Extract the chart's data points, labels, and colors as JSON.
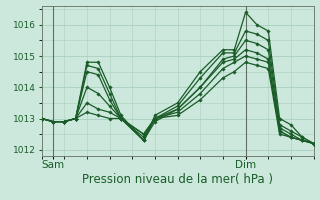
{
  "xlabel": "Pression niveau de la mer( hPa )",
  "bg_color": "#cce8dc",
  "grid_color": "#aacfbe",
  "line_color": "#1a5c28",
  "ylim": [
    1011.8,
    1016.6
  ],
  "xlim": [
    0,
    48
  ],
  "sam_x": 2,
  "dim_x": 36,
  "series": [
    {
      "x": [
        0,
        2,
        4,
        6,
        8,
        10,
        12,
        14,
        18,
        20,
        24,
        28,
        32,
        34,
        36,
        38,
        40,
        42,
        44,
        46,
        48
      ],
      "y": [
        1013.0,
        1012.9,
        1012.9,
        1013.0,
        1014.8,
        1014.8,
        1014.0,
        1013.1,
        1012.3,
        1013.1,
        1013.5,
        1014.5,
        1015.2,
        1015.2,
        1016.4,
        1016.0,
        1015.8,
        1013.0,
        1012.8,
        1012.4,
        1012.2
      ]
    },
    {
      "x": [
        0,
        2,
        4,
        6,
        8,
        10,
        12,
        14,
        18,
        20,
        24,
        28,
        32,
        34,
        36,
        38,
        40,
        42,
        44,
        46,
        48
      ],
      "y": [
        1013.0,
        1012.9,
        1012.9,
        1013.0,
        1014.7,
        1014.6,
        1013.8,
        1013.0,
        1012.3,
        1013.0,
        1013.4,
        1014.3,
        1015.1,
        1015.1,
        1015.8,
        1015.7,
        1015.5,
        1012.8,
        1012.6,
        1012.4,
        1012.2
      ]
    },
    {
      "x": [
        0,
        2,
        4,
        6,
        8,
        10,
        12,
        14,
        18,
        20,
        24,
        28,
        32,
        34,
        36,
        38,
        40,
        42,
        44,
        46,
        48
      ],
      "y": [
        1013.0,
        1012.9,
        1012.9,
        1013.0,
        1014.5,
        1014.4,
        1013.6,
        1013.0,
        1012.3,
        1012.9,
        1013.3,
        1014.0,
        1014.9,
        1015.0,
        1015.5,
        1015.4,
        1015.2,
        1012.7,
        1012.5,
        1012.3,
        1012.2
      ]
    },
    {
      "x": [
        0,
        2,
        4,
        6,
        8,
        10,
        12,
        14,
        18,
        20,
        24,
        28,
        32,
        34,
        36,
        38,
        40,
        42,
        44,
        46,
        48
      ],
      "y": [
        1013.0,
        1012.9,
        1012.9,
        1013.0,
        1014.0,
        1013.8,
        1013.4,
        1013.0,
        1012.4,
        1013.0,
        1013.3,
        1014.0,
        1014.8,
        1014.9,
        1015.2,
        1015.1,
        1014.9,
        1012.6,
        1012.4,
        1012.3,
        1012.2
      ]
    },
    {
      "x": [
        0,
        2,
        4,
        6,
        8,
        10,
        12,
        14,
        18,
        20,
        24,
        28,
        32,
        34,
        36,
        38,
        40,
        42,
        44,
        46,
        48
      ],
      "y": [
        1013.0,
        1012.9,
        1012.9,
        1013.0,
        1013.5,
        1013.3,
        1013.2,
        1013.0,
        1012.5,
        1013.0,
        1013.2,
        1013.8,
        1014.6,
        1014.8,
        1015.0,
        1014.9,
        1014.8,
        1012.6,
        1012.4,
        1012.3,
        1012.2
      ]
    },
    {
      "x": [
        0,
        2,
        4,
        6,
        8,
        10,
        12,
        14,
        18,
        20,
        24,
        28,
        32,
        34,
        36,
        38,
        40,
        42,
        44,
        46,
        48
      ],
      "y": [
        1013.0,
        1012.9,
        1012.9,
        1013.0,
        1013.2,
        1013.1,
        1013.0,
        1013.0,
        1012.5,
        1013.0,
        1013.1,
        1013.6,
        1014.3,
        1014.5,
        1014.8,
        1014.7,
        1014.6,
        1012.5,
        1012.4,
        1012.3,
        1012.2
      ]
    }
  ],
  "yticks": [
    1012,
    1013,
    1014,
    1015,
    1016
  ],
  "ytick_fontsize": 6.5,
  "xtick_fontsize": 7.5,
  "xlabel_fontsize": 8.5
}
